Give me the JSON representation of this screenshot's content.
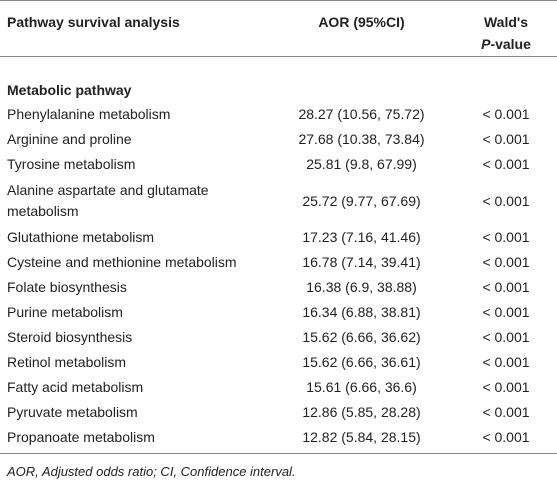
{
  "table": {
    "header": [
      "Pathway survival analysis",
      "AOR (95%CI)",
      [
        "Wald's",
        "P",
        "-value"
      ]
    ],
    "section": "Metabolic pathway",
    "rows": [
      [
        "Phenylalanine metabolism",
        "28.27 (10.56, 75.72)",
        "< 0.001"
      ],
      [
        "Arginine and proline",
        "27.68 (10.38, 73.84)",
        "< 0.001"
      ],
      [
        "Tyrosine metabolism",
        "25.81 (9.8, 67.99)",
        "< 0.001"
      ],
      [
        "Alanine aspartate and glutamate metabolism",
        "25.72 (9.77, 67.69)",
        "< 0.001"
      ],
      [
        "Glutathione metabolism",
        "17.23 (7.16, 41.46)",
        "< 0.001"
      ],
      [
        "Cysteine and methionine metabolism",
        "16.78 (7.14, 39.41)",
        "< 0.001"
      ],
      [
        "Folate biosynthesis",
        "16.38 (6.9, 38.88)",
        "< 0.001"
      ],
      [
        "Purine metabolism",
        "16.34 (6.88, 38.81)",
        "< 0.001"
      ],
      [
        "Steroid biosynthesis",
        "15.62 (6.66, 36.62)",
        "< 0.001"
      ],
      [
        "Retinol metabolism",
        "15.62 (6.66, 36.61)",
        "< 0.001"
      ],
      [
        "Fatty acid metabolism",
        "15.61 (6.66, 36.6)",
        "< 0.001"
      ],
      [
        "Pyruvate metabolism",
        "12.86 (5.85, 28.28)",
        "< 0.001"
      ],
      [
        "Propanoate metabolism",
        "12.82 (5.84, 28.15)",
        "< 0.001"
      ]
    ],
    "footnote": "AOR, Adjusted odds ratio; CI, Confidence interval."
  }
}
